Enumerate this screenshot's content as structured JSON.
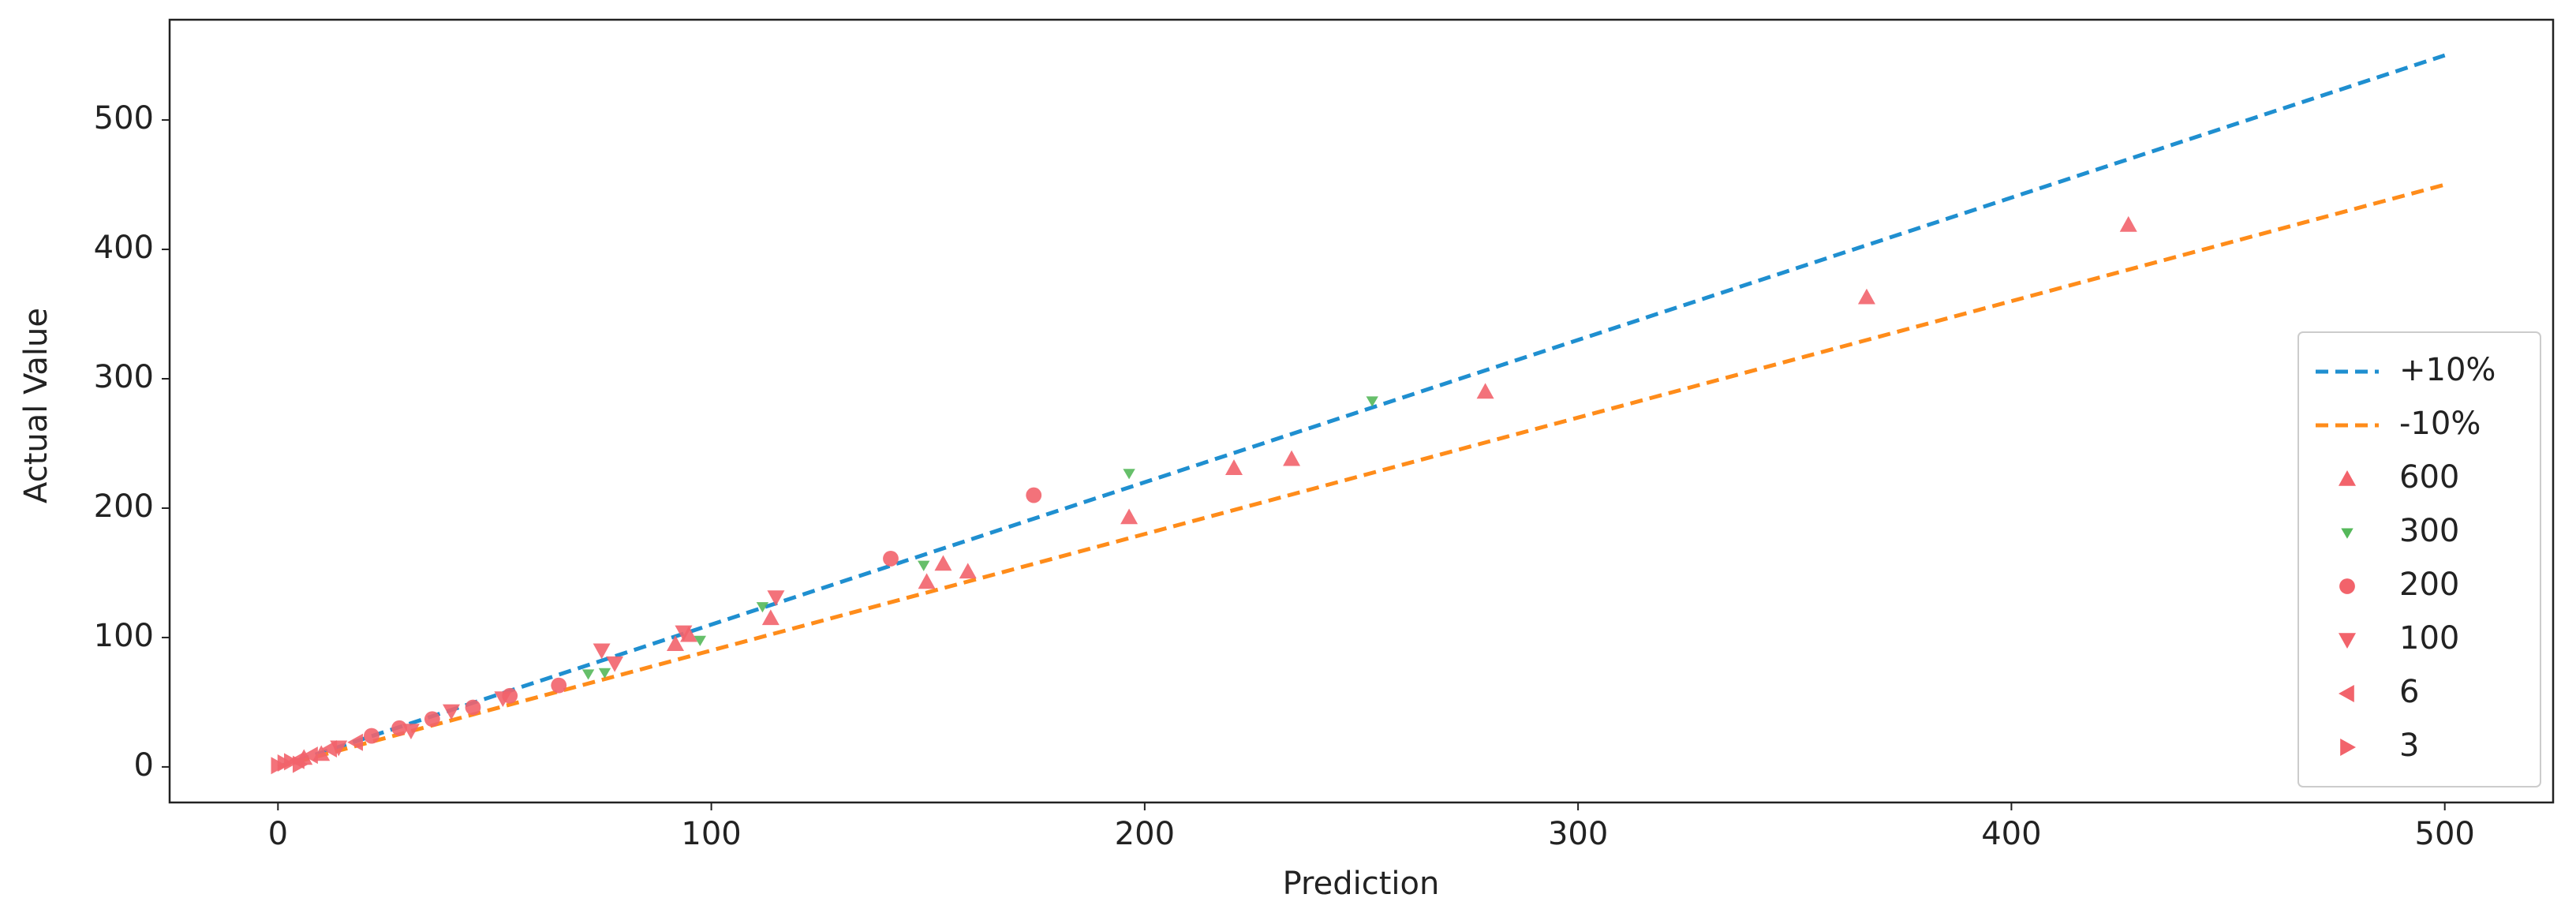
{
  "chart_data": {
    "type": "scatter",
    "x_label": "Prediction",
    "y_label": "Actual Value",
    "xlim": [
      -25,
      525
    ],
    "ylim": [
      -27.5,
      577.5
    ],
    "xticks": [
      0,
      100,
      200,
      300,
      400,
      500
    ],
    "yticks": [
      0,
      100,
      200,
      300,
      400,
      500
    ],
    "legend": "lower right",
    "series": [
      {
        "name": "+10%",
        "kind": "line",
        "dash": true,
        "color": "#1f8fd0",
        "x": [
          0,
          500
        ],
        "values": [
          0,
          550
        ]
      },
      {
        "name": "-10%",
        "kind": "line",
        "dash": true,
        "color": "#ff8c1a",
        "x": [
          0,
          500
        ],
        "values": [
          0,
          450
        ]
      },
      {
        "name": "600",
        "kind": "scatter",
        "marker": "^",
        "color": "#f2636b",
        "x": [
          427,
          366.6,
          278.6,
          233.9,
          220.6,
          196.4,
          159.2,
          153.5,
          149.7,
          113.7,
          94.8,
          91.7,
          6,
          10
        ],
        "values": [
          419,
          363,
          290,
          238,
          231,
          193,
          151,
          157,
          143,
          115,
          102,
          95,
          7,
          10
        ]
      },
      {
        "name": "300",
        "kind": "scatter",
        "marker": "1",
        "color": "#55b85a",
        "x": [
          252.5,
          196.4,
          149,
          111.8,
          97.4,
          75.4,
          71.6
        ],
        "values": [
          283,
          227,
          156,
          124,
          98,
          73,
          72
        ]
      },
      {
        "name": "200",
        "kind": "scatter",
        "marker": "o",
        "color": "#f2636b",
        "x": [
          174.4,
          141.4,
          53.5,
          64.8,
          35.6,
          21.6,
          45,
          28
        ],
        "values": [
          210,
          161,
          55,
          63,
          37,
          24,
          46,
          30
        ]
      },
      {
        "name": "100",
        "kind": "scatter",
        "marker": "v",
        "color": "#f2636b",
        "x": [
          114.9,
          93.6,
          74.7,
          77.7,
          51.9,
          30.7,
          14,
          40
        ],
        "values": [
          131,
          104,
          90,
          80,
          53,
          28,
          15,
          43
        ]
      },
      {
        "name": "6",
        "kind": "scatter",
        "marker": "<",
        "color": "#f2636b",
        "x": [
          7.6,
          4.5,
          12,
          18
        ],
        "values": [
          9,
          5,
          14,
          19
        ]
      },
      {
        "name": "3",
        "kind": "scatter",
        "marker": ">",
        "color": "#f2636b",
        "x": [
          1.5,
          3,
          0,
          5
        ],
        "values": [
          3,
          4,
          1,
          2
        ]
      }
    ]
  }
}
